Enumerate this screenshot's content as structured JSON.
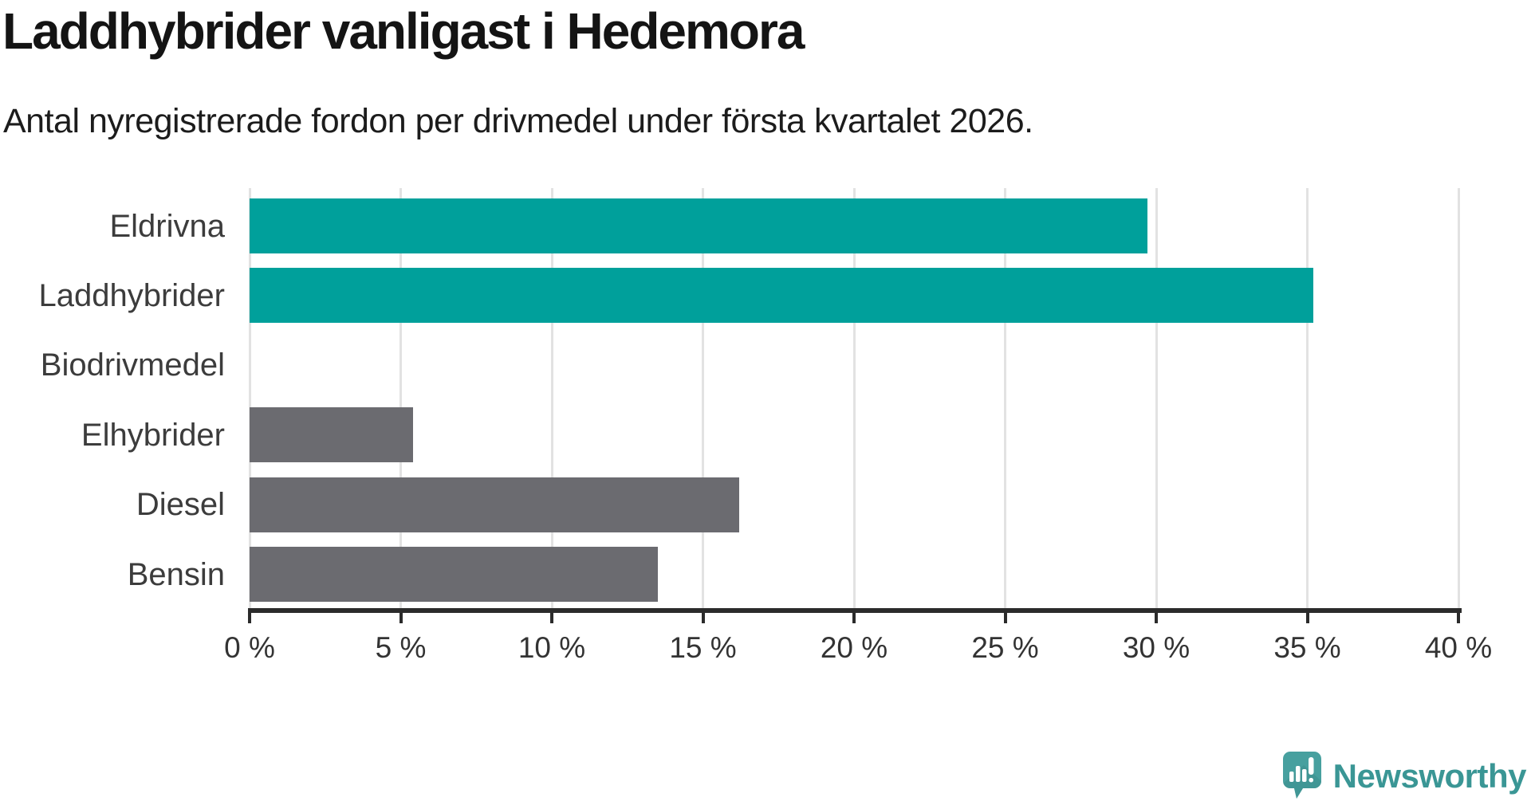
{
  "header": {
    "title": "Laddhybrider vanligast i Hedemora",
    "subtitle": "Antal nyregistrerade fordon per drivmedel under första kvartalet 2026."
  },
  "chart_data": {
    "type": "bar",
    "orientation": "horizontal",
    "title": "Laddhybrider vanligast i Hedemora",
    "subtitle": "Antal nyregistrerade fordon per drivmedel under första kvartalet 2026.",
    "categories": [
      "Eldrivna",
      "Laddhybrider",
      "Biodrivmedel",
      "Elhybrider",
      "Diesel",
      "Bensin"
    ],
    "values": [
      29.7,
      35.2,
      0,
      5.4,
      16.2,
      13.5
    ],
    "unit": "%",
    "xlabel": "",
    "ylabel": "",
    "xlim": [
      0,
      40
    ],
    "x_ticks": [
      0,
      5,
      10,
      15,
      20,
      25,
      30,
      35,
      40
    ],
    "x_tick_labels": [
      "0 %",
      "5 %",
      "10 %",
      "15 %",
      "20 %",
      "25 %",
      "30 %",
      "35 %",
      "40 %"
    ],
    "grid": "vertical-only",
    "legend": false,
    "highlighted_categories": [
      "Eldrivna",
      "Laddhybrider"
    ]
  },
  "colors": {
    "bar_highlight": "#00a09b",
    "bar_default": "#6b6b70",
    "gridline": "#e2e2e2",
    "axis": "#2b2b2b",
    "logo_bubble": "#47a09f",
    "logo_bubble_shade": "#3d8e8d",
    "logo_text": "#3a9695"
  },
  "footer": {
    "brand": "Newsworthy",
    "logo_icon": "newsworthy-speech-bubble-chart-icon"
  }
}
